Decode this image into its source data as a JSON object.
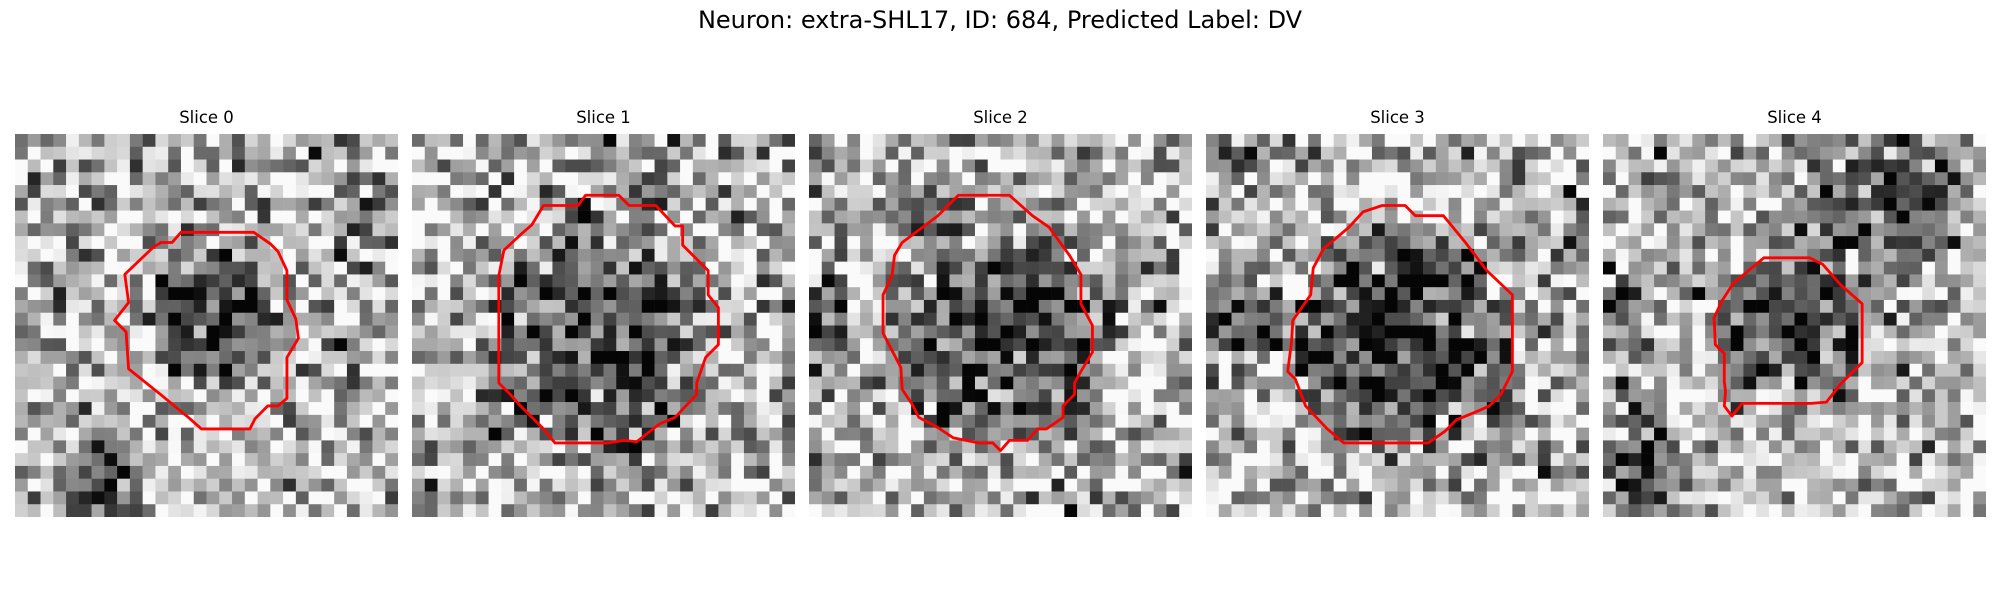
{
  "figure": {
    "title": "Neuron: extra-SHL17, ID: 684, Predicted Label: DV"
  },
  "panels": [
    {
      "title": "Slice 0"
    },
    {
      "title": "Slice 1"
    },
    {
      "title": "Slice 2"
    },
    {
      "title": "Slice 3"
    },
    {
      "title": "Slice 4"
    }
  ],
  "style": {
    "contour_color": "#ff0000",
    "colormap": "gray"
  }
}
